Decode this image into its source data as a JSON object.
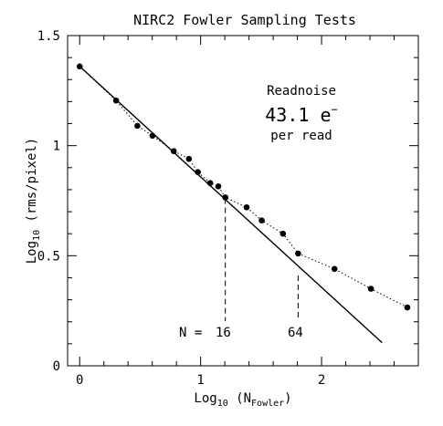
{
  "chart_data": {
    "type": "scatter",
    "title": "NIRC2 Fowler Sampling Tests",
    "xlabel": "Log10 (N_Fowler)",
    "xlabel_main": "Log",
    "xlabel_sub": "10",
    "xlabel_mid": " (N",
    "xlabel_sub2": "Fowler",
    "xlabel_end": ")",
    "ylabel": "Log10 (rms/pixel)",
    "ylabel_main": "Log",
    "ylabel_sub": "10",
    "ylabel_end": " (rms/pixel)",
    "xlim": [
      -0.1,
      2.8
    ],
    "ylim": [
      0,
      1.5
    ],
    "x_ticks": [
      0,
      1,
      2
    ],
    "x_tick_labels": [
      "0",
      "1",
      "2"
    ],
    "x_minor_step": 0.2,
    "y_ticks": [
      0,
      0.5,
      1,
      1.5
    ],
    "y_tick_labels": [
      "0",
      "0.5",
      "1",
      "1.5"
    ],
    "y_minor_step": 0.1,
    "series": [
      {
        "style": "points-dotted",
        "x": [
          0,
          0.301,
          0.477,
          0.602,
          0.778,
          0.903,
          0.977,
          1.079,
          1.146,
          1.204,
          1.38,
          1.505,
          1.681,
          1.806,
          2.107,
          2.408,
          2.709
        ],
        "y": [
          1.36,
          1.205,
          1.09,
          1.045,
          0.975,
          0.94,
          0.88,
          0.83,
          0.815,
          0.765,
          0.72,
          0.66,
          0.6,
          0.51,
          0.44,
          0.35,
          0.265
        ]
      },
      {
        "style": "solid-line",
        "x": [
          0,
          2.5
        ],
        "y": [
          1.36,
          0.105
        ]
      }
    ],
    "markers": [
      {
        "x": 1.204,
        "y_top": 0.76,
        "label": "16",
        "prefix": "N ="
      },
      {
        "x": 1.806,
        "y_top": 0.41,
        "label": "64"
      }
    ],
    "annotation": {
      "line1": "Readnoise",
      "value": "43.1 e",
      "value_sup": "−",
      "line3": "per read"
    }
  }
}
